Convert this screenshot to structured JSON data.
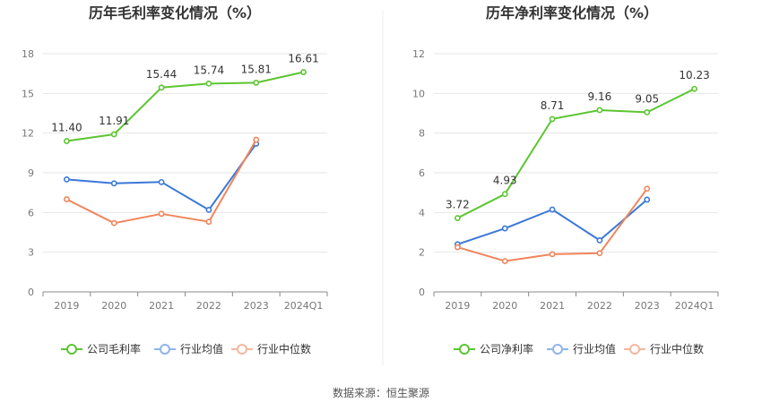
{
  "source_label": "数据来源：恒生聚源",
  "chart_data": [
    {
      "type": "line",
      "title": "历年毛利率变化情况（%）",
      "categories": [
        "2019",
        "2020",
        "2021",
        "2022",
        "2023",
        "2024Q1"
      ],
      "yticks": [
        "0",
        "3",
        "6",
        "9",
        "12",
        "15",
        "18"
      ],
      "ylim": [
        0,
        18
      ],
      "grid": true,
      "legend_position": "bottom",
      "series": [
        {
          "name": "公司毛利率",
          "color": "#5cc531",
          "labeled": true,
          "values": [
            11.4,
            11.91,
            15.44,
            15.74,
            15.81,
            16.61
          ],
          "labels": [
            "11.40",
            "11.91",
            "15.44",
            "15.74",
            "15.81",
            "16.61"
          ]
        },
        {
          "name": "行业均值",
          "color": "#3a78d8",
          "labeled": false,
          "values": [
            8.5,
            8.2,
            8.3,
            6.2,
            11.2,
            null
          ]
        },
        {
          "name": "行业中位数",
          "color": "#f0855b",
          "labeled": false,
          "values": [
            7.0,
            5.2,
            5.9,
            5.3,
            11.5,
            null
          ]
        }
      ]
    },
    {
      "type": "line",
      "title": "历年净利率变化情况（%）",
      "categories": [
        "2019",
        "2020",
        "2021",
        "2022",
        "2023",
        "2024Q1"
      ],
      "yticks": [
        "0",
        "2",
        "4",
        "6",
        "8",
        "10",
        "12"
      ],
      "ylim": [
        0,
        12
      ],
      "grid": true,
      "legend_position": "bottom",
      "series": [
        {
          "name": "公司净利率",
          "color": "#5cc531",
          "labeled": true,
          "values": [
            3.72,
            4.93,
            8.71,
            9.16,
            9.05,
            10.23
          ],
          "labels": [
            "3.72",
            "4.93",
            "8.71",
            "9.16",
            "9.05",
            "10.23"
          ]
        },
        {
          "name": "行业均值",
          "color": "#3a78d8",
          "labeled": false,
          "values": [
            2.4,
            3.2,
            4.15,
            2.6,
            4.65,
            null
          ]
        },
        {
          "name": "行业中位数",
          "color": "#f0855b",
          "labeled": false,
          "values": [
            2.25,
            1.55,
            1.9,
            1.95,
            5.2,
            null
          ]
        }
      ]
    }
  ]
}
